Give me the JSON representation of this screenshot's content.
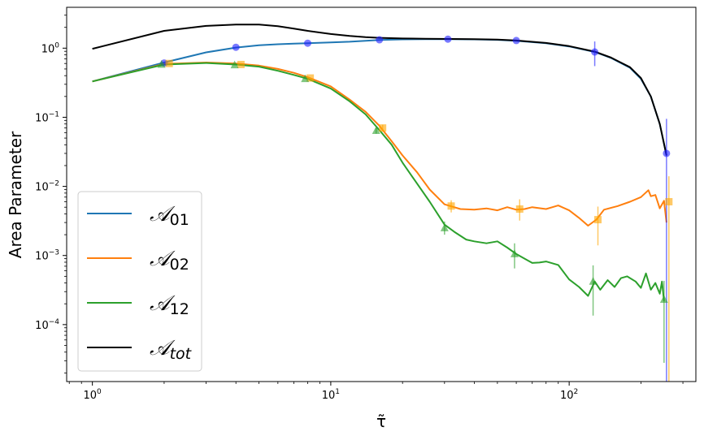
{
  "chart_data": {
    "type": "line",
    "title": "",
    "xlabel": "τ̃",
    "ylabel": "Area Parameter",
    "xscale": "log",
    "yscale": "log",
    "xlim": [
      0.78,
      340
    ],
    "ylim": [
      1.5e-05,
      3.9
    ],
    "grid": false,
    "legend_position": "lower-left",
    "x_ticks": [
      {
        "value": 1,
        "base": "10",
        "exp": "0"
      },
      {
        "value": 10,
        "base": "10",
        "exp": "1"
      },
      {
        "value": 100,
        "base": "10",
        "exp": "2"
      }
    ],
    "y_ticks": [
      {
        "value": 0.0001,
        "base": "10",
        "exp": "−4"
      },
      {
        "value": 0.001,
        "base": "10",
        "exp": "−3"
      },
      {
        "value": 0.01,
        "base": "10",
        "exp": "−2"
      },
      {
        "value": 0.1,
        "base": "10",
        "exp": "−1"
      },
      {
        "value": 1,
        "base": "10",
        "exp": "0"
      }
    ],
    "series": [
      {
        "name": "A_01",
        "legend_main": "𝒜",
        "legend_sub": "01",
        "color": "#1f77b4",
        "x": [
          1,
          2,
          3,
          4,
          5,
          6,
          7,
          8,
          10,
          12,
          14,
          16,
          20,
          25,
          32,
          40,
          50,
          60,
          80,
          100,
          128,
          150,
          180,
          200,
          220,
          240,
          256
        ],
        "y": [
          0.33,
          0.62,
          0.87,
          1.02,
          1.1,
          1.14,
          1.16,
          1.18,
          1.21,
          1.24,
          1.28,
          1.31,
          1.34,
          1.35,
          1.35,
          1.34,
          1.32,
          1.28,
          1.18,
          1.06,
          0.88,
          0.72,
          0.52,
          0.36,
          0.2,
          0.08,
          0.028
        ]
      },
      {
        "name": "A_02",
        "legend_main": "𝒜",
        "legend_sub": "02",
        "color": "#ff7f0e",
        "x": [
          1,
          2,
          3,
          4,
          5,
          6,
          7,
          8,
          10,
          12,
          14,
          16,
          18,
          20,
          23,
          26,
          30,
          35,
          40,
          45,
          50,
          55,
          60,
          65,
          70,
          80,
          90,
          100,
          110,
          120,
          130,
          140,
          160,
          180,
          200,
          215,
          220,
          230,
          240,
          250,
          256
        ],
        "y": [
          0.33,
          0.59,
          0.62,
          0.6,
          0.56,
          0.5,
          0.44,
          0.38,
          0.28,
          0.18,
          0.12,
          0.075,
          0.045,
          0.028,
          0.016,
          0.009,
          0.0055,
          0.0047,
          0.0046,
          0.0048,
          0.0045,
          0.005,
          0.0046,
          0.0047,
          0.005,
          0.0047,
          0.0053,
          0.0045,
          0.0035,
          0.0027,
          0.0033,
          0.0046,
          0.0052,
          0.006,
          0.007,
          0.0088,
          0.0072,
          0.0075,
          0.0048,
          0.0062,
          0.003
        ]
      },
      {
        "name": "A_12",
        "legend_main": "𝒜",
        "legend_sub": "12",
        "color": "#2ca02c",
        "x": [
          1,
          2,
          3,
          4,
          5,
          6,
          7,
          8,
          10,
          12,
          14,
          16,
          18,
          20,
          23,
          26,
          30,
          33,
          37,
          40,
          45,
          50,
          55,
          60,
          65,
          70,
          75,
          80,
          90,
          100,
          110,
          120,
          128,
          135,
          145,
          155,
          165,
          175,
          190,
          200,
          210,
          220,
          230,
          240,
          245,
          250
        ],
        "y": [
          0.33,
          0.58,
          0.61,
          0.58,
          0.54,
          0.47,
          0.41,
          0.36,
          0.26,
          0.17,
          0.11,
          0.065,
          0.04,
          0.022,
          0.011,
          0.006,
          0.0028,
          0.0022,
          0.0017,
          0.0016,
          0.0015,
          0.0016,
          0.0013,
          0.00105,
          0.0009,
          0.00078,
          0.00079,
          0.00082,
          0.00073,
          0.00045,
          0.00035,
          0.00026,
          0.00042,
          0.00032,
          0.00044,
          0.00035,
          0.00047,
          0.0005,
          0.00042,
          0.00034,
          0.00055,
          0.00032,
          0.0004,
          0.00028,
          0.00042,
          0.00022
        ]
      },
      {
        "name": "A_tot",
        "legend_main": "𝒜",
        "legend_sub": "tot",
        "color": "#000000",
        "x": [
          1,
          2,
          3,
          4,
          5,
          6,
          7,
          8,
          10,
          12,
          14,
          16,
          20,
          25,
          32,
          40,
          50,
          60,
          80,
          100,
          128,
          150,
          180,
          200,
          220,
          240,
          256
        ],
        "y": [
          0.98,
          1.78,
          2.1,
          2.2,
          2.2,
          2.08,
          1.92,
          1.78,
          1.6,
          1.5,
          1.44,
          1.41,
          1.38,
          1.37,
          1.36,
          1.35,
          1.33,
          1.29,
          1.19,
          1.07,
          0.89,
          0.73,
          0.53,
          0.37,
          0.2,
          0.08,
          0.028
        ]
      }
    ],
    "error_markers": [
      {
        "name": "A_01 estimates",
        "marker": "circle",
        "color": "#1f1fff",
        "points": [
          {
            "x": 2,
            "y": 0.61,
            "lo": 0.61,
            "hi": 0.61
          },
          {
            "x": 4,
            "y": 1.03,
            "lo": 1.03,
            "hi": 1.03
          },
          {
            "x": 8,
            "y": 1.18,
            "lo": 1.18,
            "hi": 1.18
          },
          {
            "x": 16,
            "y": 1.32,
            "lo": 1.32,
            "hi": 1.32
          },
          {
            "x": 31,
            "y": 1.35,
            "lo": 1.35,
            "hi": 1.35
          },
          {
            "x": 60,
            "y": 1.29,
            "lo": 1.29,
            "hi": 1.29
          },
          {
            "x": 128,
            "y": 0.88,
            "lo": 0.55,
            "hi": 1.25
          },
          {
            "x": 256,
            "y": 0.03,
            "lo": 1.5e-05,
            "hi": 0.095
          }
        ]
      },
      {
        "name": "A_02 estimates",
        "marker": "square",
        "color": "#ffa500",
        "points": [
          {
            "x": 2.1,
            "y": 0.6,
            "lo": 0.6,
            "hi": 0.6
          },
          {
            "x": 4.2,
            "y": 0.58,
            "lo": 0.58,
            "hi": 0.58
          },
          {
            "x": 8.2,
            "y": 0.37,
            "lo": 0.37,
            "hi": 0.37
          },
          {
            "x": 16.5,
            "y": 0.07,
            "lo": 0.062,
            "hi": 0.078
          },
          {
            "x": 32,
            "y": 0.0052,
            "lo": 0.0042,
            "hi": 0.0063
          },
          {
            "x": 62,
            "y": 0.0047,
            "lo": 0.0032,
            "hi": 0.0065
          },
          {
            "x": 132,
            "y": 0.0033,
            "lo": 0.0014,
            "hi": 0.0051
          },
          {
            "x": 262,
            "y": 0.006,
            "lo": 1.5e-05,
            "hi": 0.014
          }
        ]
      },
      {
        "name": "A_12 estimates",
        "marker": "triangle",
        "color": "#2ca02c",
        "points": [
          {
            "x": 1.95,
            "y": 0.58,
            "lo": 0.58,
            "hi": 0.58
          },
          {
            "x": 3.95,
            "y": 0.57,
            "lo": 0.57,
            "hi": 0.57
          },
          {
            "x": 7.8,
            "y": 0.36,
            "lo": 0.36,
            "hi": 0.36
          },
          {
            "x": 15.5,
            "y": 0.064,
            "lo": 0.058,
            "hi": 0.07
          },
          {
            "x": 30,
            "y": 0.0025,
            "lo": 0.002,
            "hi": 0.0031
          },
          {
            "x": 59,
            "y": 0.00105,
            "lo": 0.00065,
            "hi": 0.0015
          },
          {
            "x": 126,
            "y": 0.00042,
            "lo": 0.000135,
            "hi": 0.00072
          },
          {
            "x": 250,
            "y": 0.00023,
            "lo": 2.8e-05,
            "hi": 0.00043
          }
        ]
      }
    ]
  }
}
